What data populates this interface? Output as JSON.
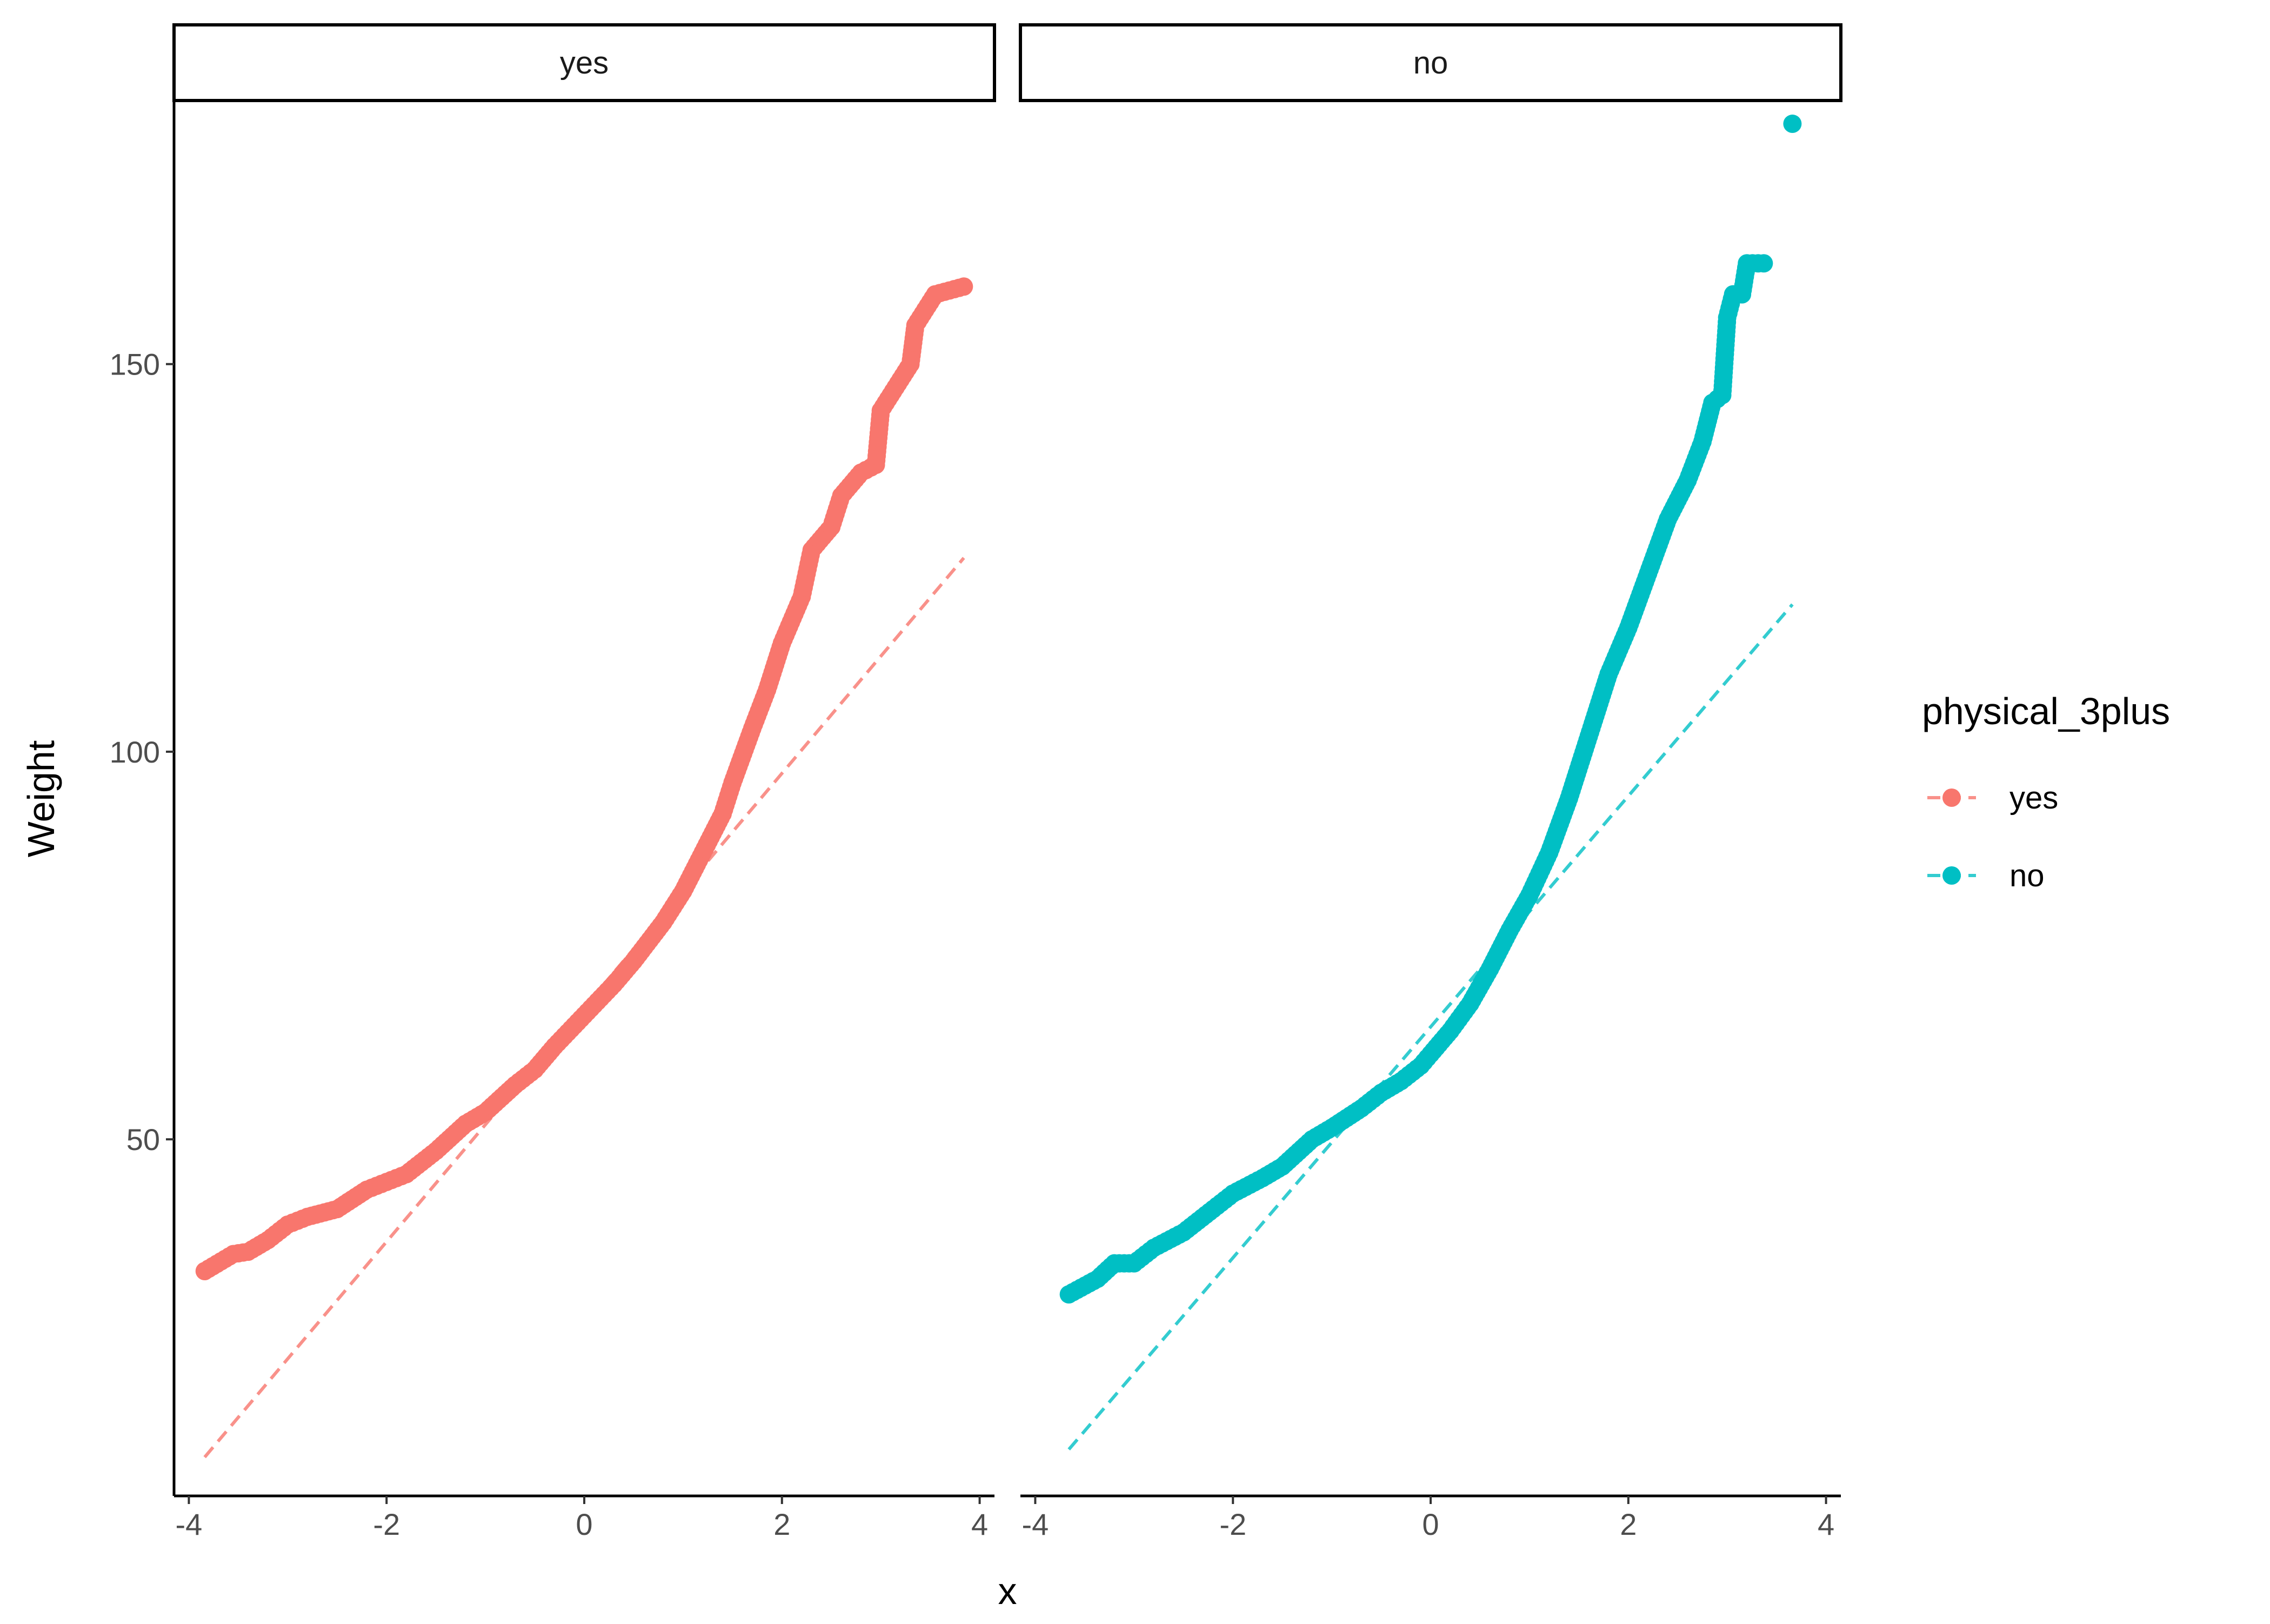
{
  "chart_data": {
    "type": "scatter",
    "subtype": "qq-plot with reference line, faceted",
    "title": "",
    "xlabel": "x",
    "ylabel": "Weight",
    "facets": [
      "yes",
      "no"
    ],
    "legend": {
      "title": "physical_3plus",
      "placement": "right",
      "entries": [
        {
          "label": "yes",
          "color": "#F8766D"
        },
        {
          "label": "no",
          "color": "#00BFC4"
        }
      ]
    },
    "xlim": [
      -4.15,
      4.15
    ],
    "ylim": [
      4,
      184
    ],
    "x_ticks": [
      -4,
      -2,
      0,
      2,
      4
    ],
    "x_tick_labels": [
      "-4",
      "-2",
      "0",
      "2",
      "4"
    ],
    "y_ticks": [
      50,
      100,
      150
    ],
    "y_tick_labels": [
      "50",
      "100",
      "150"
    ],
    "grid": false,
    "series": [
      {
        "name": "yes",
        "facet": "yes",
        "color": "#F8766D",
        "quantile_points": [
          [
            -3.84,
            33
          ],
          [
            -3.55,
            35.2
          ],
          [
            -3.4,
            35.5
          ],
          [
            -3.2,
            37
          ],
          [
            -3.0,
            39
          ],
          [
            -2.8,
            40
          ],
          [
            -2.5,
            41
          ],
          [
            -2.2,
            43.5
          ],
          [
            -2.0,
            44.5
          ],
          [
            -1.8,
            45.5
          ],
          [
            -1.5,
            48.5
          ],
          [
            -1.2,
            52
          ],
          [
            -1.0,
            53.5
          ],
          [
            -0.7,
            57
          ],
          [
            -0.5,
            59
          ],
          [
            -0.3,
            62
          ],
          [
            0.0,
            66
          ],
          [
            0.3,
            70
          ],
          [
            0.5,
            73
          ],
          [
            0.8,
            78
          ],
          [
            1.0,
            82
          ],
          [
            1.2,
            87
          ],
          [
            1.4,
            92
          ],
          [
            1.5,
            96
          ],
          [
            1.7,
            103
          ],
          [
            1.85,
            108
          ],
          [
            2.0,
            114
          ],
          [
            2.2,
            120
          ],
          [
            2.3,
            126
          ],
          [
            2.5,
            129
          ],
          [
            2.6,
            133
          ],
          [
            2.8,
            136
          ],
          [
            2.95,
            137
          ],
          [
            3.0,
            144
          ],
          [
            3.2,
            148
          ],
          [
            3.3,
            150
          ],
          [
            3.35,
            155
          ],
          [
            3.45,
            157
          ],
          [
            3.55,
            159
          ],
          [
            3.84,
            160
          ]
        ],
        "reference_line": {
          "x": [
            -3.84,
            3.84
          ],
          "y": [
            9,
            125
          ]
        }
      },
      {
        "name": "no",
        "facet": "no",
        "color": "#00BFC4",
        "quantile_points": [
          [
            -3.66,
            30
          ],
          [
            -3.37,
            32
          ],
          [
            -3.2,
            34
          ],
          [
            -3.0,
            34
          ],
          [
            -2.8,
            36
          ],
          [
            -2.5,
            38
          ],
          [
            -2.2,
            41
          ],
          [
            -2.0,
            43
          ],
          [
            -1.7,
            45
          ],
          [
            -1.5,
            46.5
          ],
          [
            -1.2,
            50
          ],
          [
            -1.0,
            51.5
          ],
          [
            -0.7,
            54
          ],
          [
            -0.5,
            56
          ],
          [
            -0.3,
            57.5
          ],
          [
            -0.1,
            59.5
          ],
          [
            0.0,
            61
          ],
          [
            0.2,
            64
          ],
          [
            0.4,
            67.5
          ],
          [
            0.6,
            72
          ],
          [
            0.8,
            77
          ],
          [
            1.0,
            81.5
          ],
          [
            1.2,
            87
          ],
          [
            1.4,
            94
          ],
          [
            1.6,
            102
          ],
          [
            1.8,
            110
          ],
          [
            2.0,
            116
          ],
          [
            2.2,
            123
          ],
          [
            2.4,
            130
          ],
          [
            2.6,
            135
          ],
          [
            2.75,
            140
          ],
          [
            2.85,
            145
          ],
          [
            2.95,
            146
          ],
          [
            3.0,
            156
          ],
          [
            3.06,
            159
          ],
          [
            3.15,
            159
          ],
          [
            3.2,
            163
          ],
          [
            3.37,
            163
          ],
          [
            3.66,
            181
          ]
        ],
        "reference_line": {
          "x": [
            -3.66,
            3.66
          ],
          "y": [
            10,
            119
          ]
        }
      }
    ]
  }
}
